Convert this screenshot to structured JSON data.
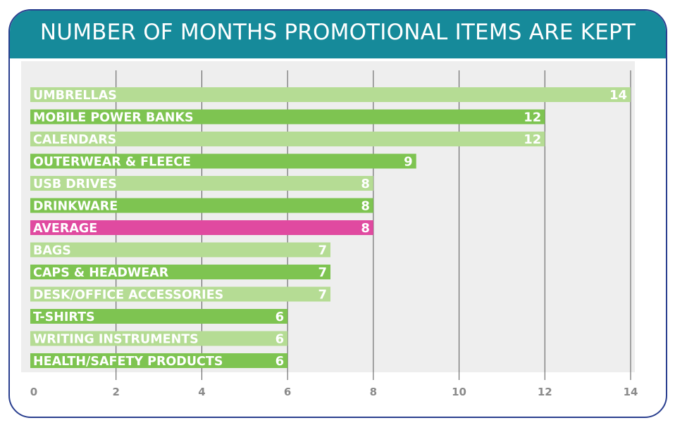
{
  "title": "NUMBER OF MONTHS PROMOTIONAL ITEMS ARE KEPT",
  "colors": {
    "header": "#168a9a",
    "border": "#2a3f8f",
    "bar_dark": "#7ec451",
    "bar_light": "#b5dc94",
    "bar_average": "#e04aa0",
    "grid": "#555555",
    "plot_bg": "#eeeeee"
  },
  "chart_data": {
    "type": "bar",
    "orientation": "horizontal",
    "title": "NUMBER OF MONTHS PROMOTIONAL ITEMS ARE KEPT",
    "xlabel": "",
    "ylabel": "",
    "xlim": [
      0,
      14
    ],
    "ticks": [
      "0",
      "2",
      "4",
      "6",
      "8",
      "10",
      "12",
      "14"
    ],
    "grid": true,
    "categories": [
      "UMBRELLAS",
      "MOBILE POWER BANKS",
      "CALENDARS",
      "OUTERWEAR & FLEECE",
      "USB DRIVES",
      "DRINKWARE",
      "AVERAGE",
      "BAGS",
      "CAPS & HEADWEAR",
      "DESK/OFFICE ACCESSORIES",
      "T-SHIRTS",
      "WRITING INSTRUMENTS",
      "HEALTH/SAFETY PRODUCTS"
    ],
    "values": [
      14,
      12,
      12,
      9,
      8,
      8,
      8,
      7,
      7,
      7,
      6,
      6,
      6
    ],
    "bar_colors": [
      "light",
      "dark",
      "light",
      "dark",
      "light",
      "dark",
      "average",
      "light",
      "dark",
      "light",
      "dark",
      "light",
      "dark"
    ]
  }
}
